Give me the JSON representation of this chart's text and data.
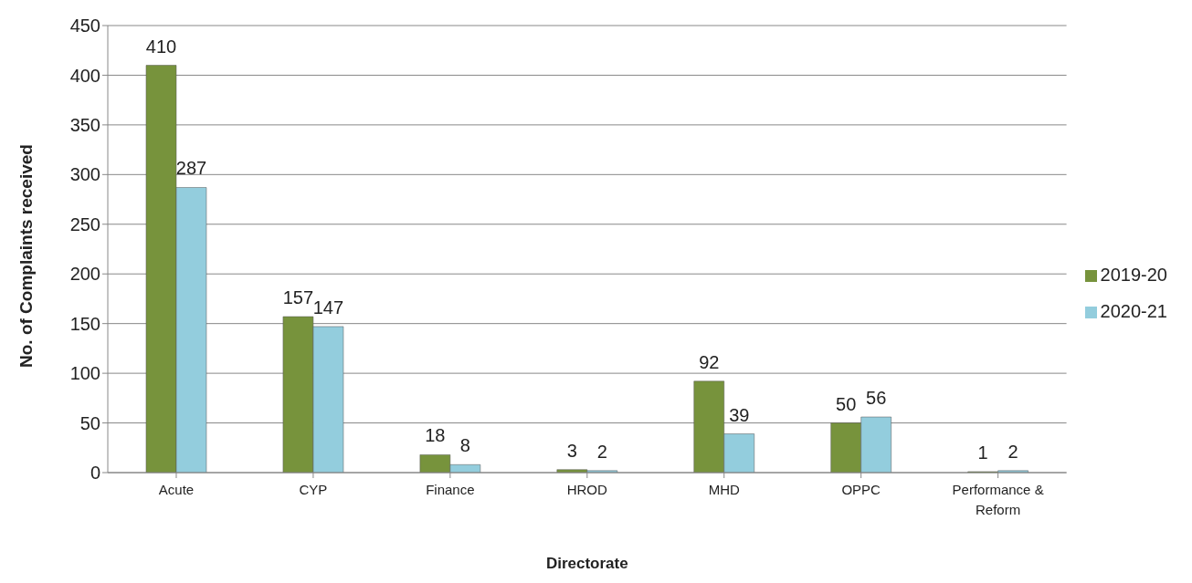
{
  "chart_data": {
    "type": "bar",
    "xlabel": "Directorate",
    "ylabel": "No. of Complaints received",
    "categories": [
      "Acute",
      "CYP",
      "Finance",
      "HROD",
      "MHD",
      "OPPC",
      "Performance & Reform"
    ],
    "series": [
      {
        "name": "2019-20",
        "color": "#77933c",
        "values": [
          410,
          157,
          18,
          3,
          92,
          50,
          1
        ]
      },
      {
        "name": "2020-21",
        "color": "#93cddd",
        "values": [
          287,
          147,
          8,
          2,
          39,
          56,
          2
        ]
      }
    ],
    "ylim": [
      0,
      450
    ],
    "yticks": [
      0,
      50,
      100,
      150,
      200,
      250,
      300,
      350,
      400,
      450
    ],
    "grid": "y",
    "legend": "right",
    "data_labels": true
  }
}
